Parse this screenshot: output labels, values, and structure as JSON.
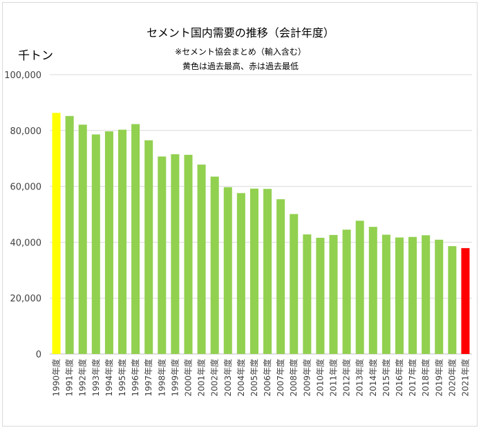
{
  "chart_data": {
    "type": "bar",
    "title": "セメント国内需要の推移（会計年度）",
    "subtitles": [
      "※セメント協会まとめ（輸入含む）",
      "黄色は過去最高、赤は過去最低"
    ],
    "ylabel": "千トン",
    "ylim": [
      0,
      100000
    ],
    "yticks": [
      0,
      20000,
      40000,
      60000,
      80000,
      100000
    ],
    "ytick_labels": [
      "0",
      "20,000",
      "40,000",
      "60,000",
      "80,000",
      "100,000"
    ],
    "grid": true,
    "legend": "none",
    "categories": [
      "1990年度",
      "1991年度",
      "1992年度",
      "1993年度",
      "1994年度",
      "1995年度",
      "1996年度",
      "1997年度",
      "1998年度",
      "1999年度",
      "2000年度",
      "2001年度",
      "2002年度",
      "2003年度",
      "2004年度",
      "2005年度",
      "2006年度",
      "2007年度",
      "2008年度",
      "2009年度",
      "2010年度",
      "2011年度",
      "2012年度",
      "2013年度",
      "2014年度",
      "2015年度",
      "2016年度",
      "2017年度",
      "2018年度",
      "2019年度",
      "2020年度",
      "2021年度"
    ],
    "values": [
      86300,
      85200,
      82100,
      78600,
      79700,
      80300,
      82300,
      76500,
      70700,
      71500,
      71300,
      67800,
      63500,
      59700,
      57600,
      59200,
      59100,
      55400,
      50100,
      42800,
      41600,
      42600,
      44500,
      47700,
      45500,
      42700,
      41700,
      41900,
      42500,
      40900,
      38600,
      37900
    ],
    "colors": {
      "default": "#92d050",
      "highest": "#ffff00",
      "lowest": "#ff0000",
      "highest_index": 0,
      "lowest_index": 31
    }
  }
}
